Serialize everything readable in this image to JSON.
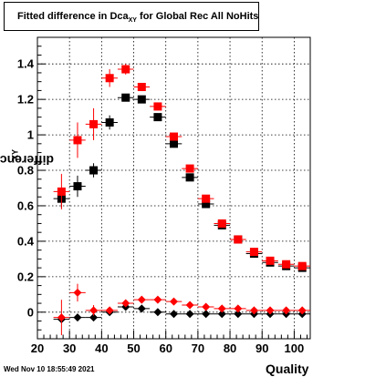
{
  "chart_data": {
    "type": "scatter",
    "title": {
      "main": "Fitted difference in Dca",
      "sub": "XY",
      "rest": " for Global Rec All NoHits"
    },
    "xlabel": "Quality",
    "ylabel": {
      "main": "difference in Dca",
      "sub": "XY"
    },
    "xlim": [
      20,
      105
    ],
    "ylim": [
      -0.15,
      1.55
    ],
    "xticks": [
      20,
      30,
      40,
      50,
      60,
      70,
      80,
      90,
      100
    ],
    "yticks": [
      0,
      0.2,
      0.4,
      0.6,
      0.8,
      1,
      1.2,
      1.4
    ],
    "ytick_labels": [
      "0",
      "0.2",
      "0.4",
      "0.6",
      "0.8",
      "1",
      "1.2",
      "1.4"
    ],
    "grid": true,
    "x": [
      27.5,
      32.5,
      37.5,
      42.5,
      47.5,
      52.5,
      57.5,
      62.5,
      67.5,
      72.5,
      77.5,
      82.5,
      87.5,
      92.5,
      97.5,
      102.5
    ],
    "series": [
      {
        "marker": "square",
        "color": "#000000",
        "values": [
          0.64,
          0.71,
          0.8,
          1.07,
          1.21,
          1.2,
          1.1,
          0.95,
          0.76,
          0.61,
          0.49,
          0.41,
          0.33,
          0.28,
          0.26,
          0.25
        ],
        "errors": [
          0.05,
          0.06,
          0.04,
          0.04,
          0.02,
          0.02,
          0.02,
          0.02,
          0.01,
          0.01,
          0.01,
          0.01,
          0.01,
          0.01,
          0.01,
          0.01
        ]
      },
      {
        "marker": "square",
        "color": "#ff0000",
        "values": [
          0.68,
          0.97,
          1.06,
          1.32,
          1.37,
          1.27,
          1.16,
          0.99,
          0.81,
          0.64,
          0.5,
          0.41,
          0.34,
          0.29,
          0.27,
          0.26
        ],
        "errors": [
          0.1,
          0.1,
          0.09,
          0.05,
          0.03,
          0.02,
          0.02,
          0.02,
          0.01,
          0.01,
          0.01,
          0.01,
          0.01,
          0.01,
          0.01,
          0.01
        ]
      },
      {
        "marker": "diamond",
        "color": "#000000",
        "values": [
          -0.04,
          -0.03,
          -0.03,
          0.0,
          0.03,
          0.02,
          0.0,
          -0.01,
          -0.01,
          -0.01,
          -0.01,
          -0.01,
          -0.01,
          -0.01,
          -0.01,
          -0.01
        ],
        "errors": [
          0.02,
          0.02,
          0.02,
          0.01,
          0.01,
          0.01,
          0.01,
          0.01,
          0.01,
          0.01,
          0.01,
          0.01,
          0.01,
          0.01,
          0.01,
          0.01
        ]
      },
      {
        "marker": "diamond",
        "color": "#ff0000",
        "values": [
          -0.03,
          0.11,
          0.01,
          0.01,
          0.05,
          0.07,
          0.07,
          0.06,
          0.04,
          0.03,
          0.02,
          0.02,
          0.01,
          0.01,
          0.01,
          0.01
        ],
        "errors": [
          0.1,
          0.05,
          0.03,
          0.02,
          0.01,
          0.01,
          0.01,
          0.01,
          0.01,
          0.01,
          0.01,
          0.01,
          0.01,
          0.01,
          0.01,
          0.01
        ]
      }
    ]
  },
  "footer": {
    "datestamp": "Wed Nov 10 18:55:49 2021"
  }
}
